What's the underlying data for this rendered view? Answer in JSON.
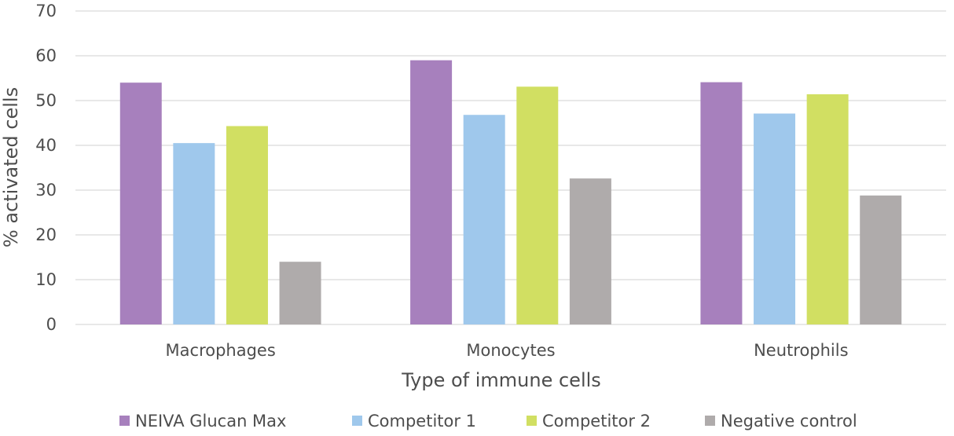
{
  "chart_data": {
    "type": "bar",
    "title": "",
    "xlabel": "Type of immune cells",
    "ylabel": "% activated cells",
    "ylim": [
      0,
      70
    ],
    "yticks": [
      0,
      10,
      20,
      30,
      40,
      50,
      60,
      70
    ],
    "grid": true,
    "legend_position": "bottom",
    "categories": [
      "Macrophages",
      "Monocytes",
      "Neutrophils"
    ],
    "series": [
      {
        "name": "NEIVA Glucan Max",
        "color": "#a780bd",
        "values": [
          54,
          59,
          54.1
        ]
      },
      {
        "name": "Competitor 1",
        "color": "#9fc8ec",
        "values": [
          40.5,
          46.8,
          47.1
        ]
      },
      {
        "name": "Competitor 2",
        "color": "#d1df62",
        "values": [
          44.3,
          53.1,
          51.4
        ]
      },
      {
        "name": "Negative control",
        "color": "#afabab",
        "values": [
          14,
          32.6,
          28.8
        ]
      }
    ],
    "gridline_color": "#d9d9d9",
    "text_color": "#4d4d4d"
  }
}
